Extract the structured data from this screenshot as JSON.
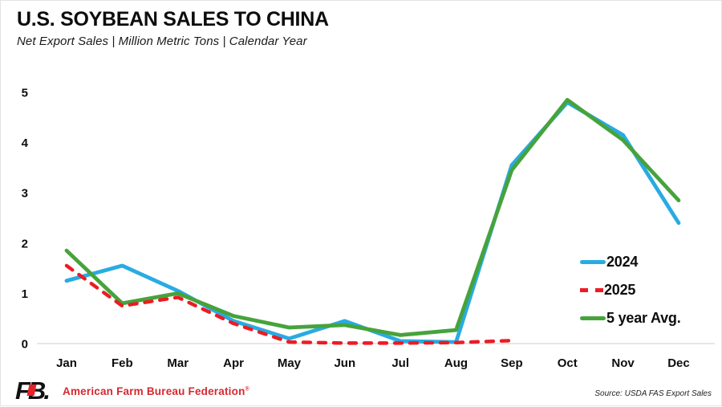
{
  "header": {
    "title": "U.S. SOYBEAN SALES TO CHINA",
    "subtitle": "Net Export Sales | Million Metric Tons | Calendar Year"
  },
  "chart_data": {
    "type": "line",
    "categories": [
      "Jan",
      "Feb",
      "Mar",
      "Apr",
      "May",
      "Jun",
      "Jul",
      "Aug",
      "Sep",
      "Oct",
      "Nov",
      "Dec"
    ],
    "series": [
      {
        "name": "2024",
        "color": "#29ABE2",
        "style": "solid",
        "values": [
          1.25,
          1.55,
          1.05,
          0.45,
          0.1,
          0.45,
          0.05,
          0.03,
          3.55,
          4.8,
          4.15,
          2.4
        ]
      },
      {
        "name": "2025",
        "color": "#EC1C24",
        "style": "dashed",
        "values": [
          1.55,
          0.75,
          0.92,
          0.4,
          0.03,
          0.01,
          0.01,
          0.02,
          0.06
        ]
      },
      {
        "name": "5 year Avg.",
        "color": "#46A33C",
        "style": "solid",
        "values": [
          1.85,
          0.8,
          1.0,
          0.55,
          0.32,
          0.37,
          0.17,
          0.27,
          3.45,
          4.85,
          4.05,
          2.85
        ]
      }
    ],
    "title": "U.S. SOYBEAN SALES TO CHINA",
    "xlabel": "",
    "ylabel": "Million Metric Tons",
    "ylim": [
      0,
      5
    ],
    "yticks": [
      0,
      1,
      2,
      3,
      4,
      5
    ],
    "grid": "baseline-only",
    "legend_position": "right-middle",
    "draw_order": [
      0,
      2,
      1
    ],
    "axis_line_color": "#cccccc",
    "tick_label_color": "#0d0d0d"
  },
  "footer": {
    "logo_text": "FB.",
    "org_name": "American Farm Bureau Federation",
    "trademark": "®",
    "org_color": "#D7282F",
    "logo_accent_color": "#E3242B",
    "source": "Source: USDA FAS Export Sales"
  }
}
